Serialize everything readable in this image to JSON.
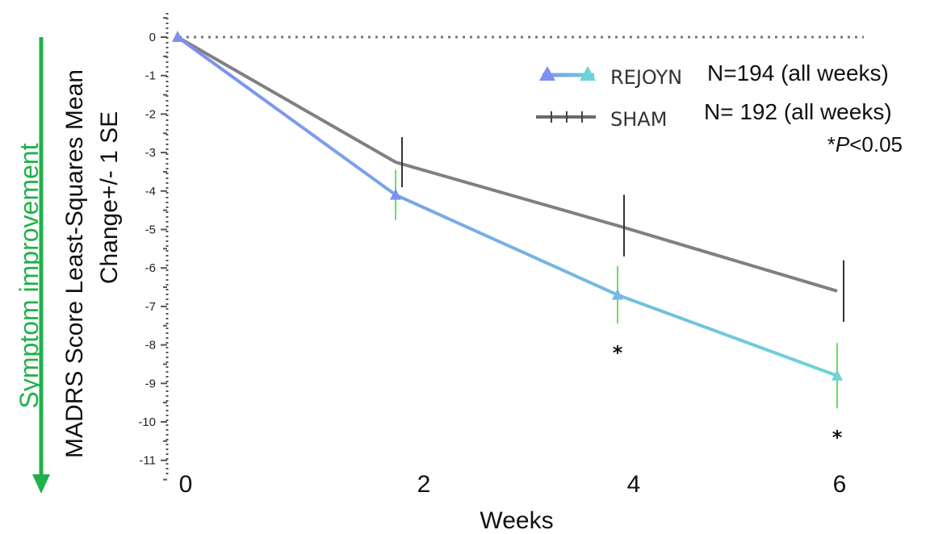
{
  "chart_data": {
    "type": "line",
    "xlabel": "Weeks",
    "ylabel_line1": "MADRS Score Least-Squares Mean",
    "ylabel_line2": "Change+/- 1 SE",
    "side_label": "Symptom improvement",
    "x_ticks": [
      "0",
      "2",
      "4",
      "6"
    ],
    "y_ticks": [
      0,
      -1,
      -2,
      -3,
      -4,
      -5,
      -6,
      -7,
      -8,
      -9,
      -10,
      -11
    ],
    "ylim": [
      -11,
      0
    ],
    "reference_line": 0,
    "series": [
      {
        "name": "REJOYN",
        "n_label": "N=194 (all weeks)",
        "x": [
          0,
          2,
          4,
          6
        ],
        "y": [
          0,
          -4.1,
          -6.7,
          -8.8
        ],
        "se": [
          0,
          0.65,
          0.75,
          0.85
        ],
        "color_start": "#7e8ff0",
        "color_end": "#6ed3d6",
        "error_color": "#5ce65c"
      },
      {
        "name": "SHAM",
        "n_label": "N= 192 (all weeks)",
        "x": [
          0,
          2,
          4,
          6
        ],
        "y": [
          0,
          -3.25,
          -4.9,
          -6.6
        ],
        "se": [
          0,
          0.65,
          0.8,
          0.8
        ],
        "color": "#808080",
        "error_color": "#333333"
      }
    ],
    "significance": {
      "marker": "*",
      "weeks": [
        4,
        6
      ],
      "note_prefix": "*",
      "note_italic": "P",
      "note_suffix": "<0.05"
    },
    "colors": {
      "improvement_arrow": "#22b04b"
    }
  }
}
